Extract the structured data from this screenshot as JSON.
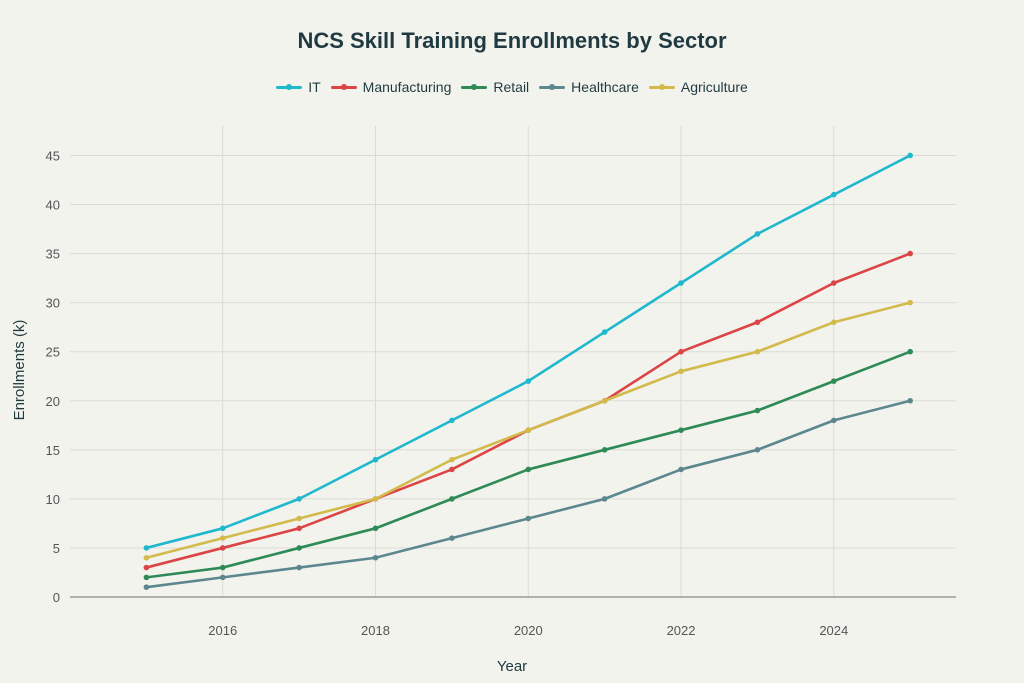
{
  "chart_data": {
    "type": "line",
    "title": "NCS Skill Training Enrollments by Sector",
    "xlabel": "Year",
    "ylabel": "Enrollments (k)",
    "x": [
      2015,
      2016,
      2017,
      2018,
      2019,
      2020,
      2021,
      2022,
      2023,
      2024,
      2025
    ],
    "xlim": [
      2014,
      2025.6
    ],
    "ylim": [
      0,
      48
    ],
    "xticks": [
      2016,
      2018,
      2020,
      2022,
      2024
    ],
    "yticks": [
      0,
      5,
      10,
      15,
      20,
      25,
      30,
      35,
      40,
      45
    ],
    "grid": true,
    "legend_position": "top-center",
    "series": [
      {
        "name": "IT",
        "color": "#1fb8cd",
        "values": [
          5,
          7,
          10,
          14,
          18,
          22,
          27,
          32,
          37,
          41,
          45
        ]
      },
      {
        "name": "Manufacturing",
        "color": "#db4545",
        "values": [
          3,
          5,
          7,
          10,
          13,
          17,
          20,
          25,
          28,
          32,
          35
        ]
      },
      {
        "name": "Retail",
        "color": "#2e8b57",
        "values": [
          2,
          3,
          5,
          7,
          10,
          13,
          15,
          17,
          19,
          22,
          25
        ]
      },
      {
        "name": "Healthcare",
        "color": "#5d878f",
        "values": [
          1,
          2,
          3,
          4,
          6,
          8,
          10,
          13,
          15,
          18,
          20
        ]
      },
      {
        "name": "Agriculture",
        "color": "#d2ba4c",
        "values": [
          4,
          6,
          8,
          10,
          14,
          17,
          20,
          23,
          25,
          28,
          30
        ]
      }
    ]
  }
}
